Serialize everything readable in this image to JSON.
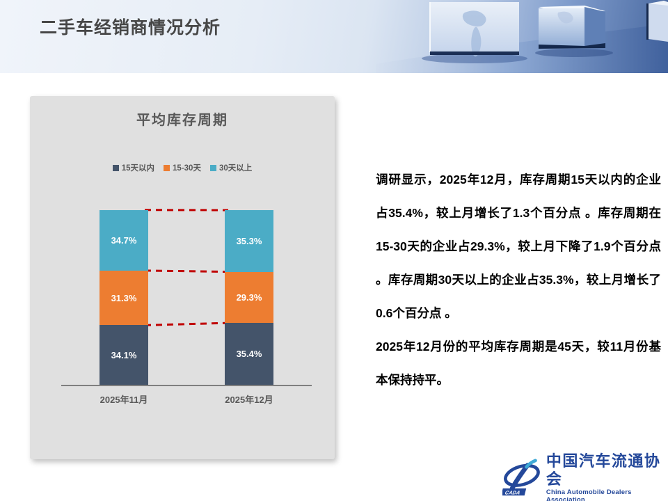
{
  "slide": {
    "title": "二手车经销商情况分析"
  },
  "chart_data": {
    "type": "bar",
    "variant": "stacked-percent-column",
    "title": "平均库存周期",
    "categories": [
      "2025年11月",
      "2025年12月"
    ],
    "series": [
      {
        "name": "15天以内",
        "color": "#44546A",
        "values": [
          34.1,
          35.4
        ]
      },
      {
        "name": "15-30天",
        "color": "#ED7D31",
        "values": [
          31.3,
          29.3
        ]
      },
      {
        "name": "30天以上",
        "color": "#4BACC6",
        "values": [
          34.7,
          35.3
        ]
      }
    ],
    "ylim": [
      0,
      100
    ],
    "grid": false,
    "legend_position": "top",
    "connector_line_color": "#C00000",
    "axis_line_color": "#7F7F7F"
  },
  "commentary": {
    "paragraph1": "调研显示，2025年12月，库存周期15天以内的企业占35.4%，较上月增长了1.3个百分点 。库存周期在15-30天的企业占29.3%，较上月下降了1.9个百分点 。库存周期30天以上的企业占35.3%，较上月增长了0.6个百分点 。",
    "paragraph2": "2025年12月份的平均库存周期是45天，较11月份基本保持持平。"
  },
  "footer": {
    "logo_cn": "中国汽车流通协会",
    "logo_en": "China Automobile Dealers Association",
    "logo_badge": "CADA"
  }
}
